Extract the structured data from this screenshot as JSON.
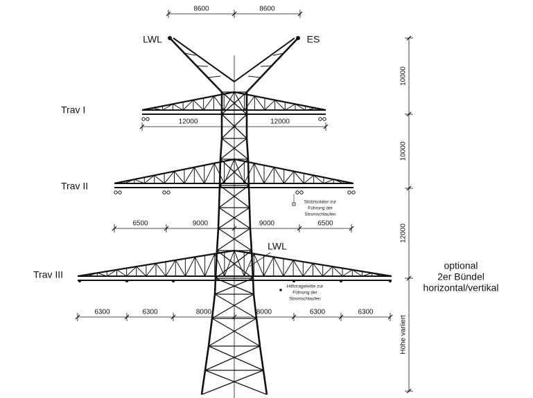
{
  "top_dimensions": [
    "8600",
    "8600"
  ],
  "labels": {
    "lwl_top": "LWL",
    "es": "ES",
    "lwl_mid": "LWL"
  },
  "crossarms": [
    {
      "name": "Trav I",
      "dimensions": [
        "12000",
        "12000"
      ]
    },
    {
      "name": "Trav II",
      "dimensions": [
        "6500",
        "9000",
        "9000",
        "6500"
      ]
    },
    {
      "name": "Trav III",
      "dimensions": [
        "6300",
        "6300",
        "8000",
        "8000",
        "6300",
        "6300"
      ]
    }
  ],
  "vertical_dimensions": [
    "10000",
    "10000",
    "12000",
    "Höhe variiert"
  ],
  "notes": {
    "support_insulator": [
      "Stützisolator zur",
      "Führung der",
      "Stromschlaufen"
    ],
    "auxiliary_chain": [
      "Hilfstragekette zur",
      "Führung der",
      "Stromschlaufen"
    ],
    "bundle": [
      "optional",
      "2er Bündel",
      "horizontal/vertikal"
    ]
  }
}
